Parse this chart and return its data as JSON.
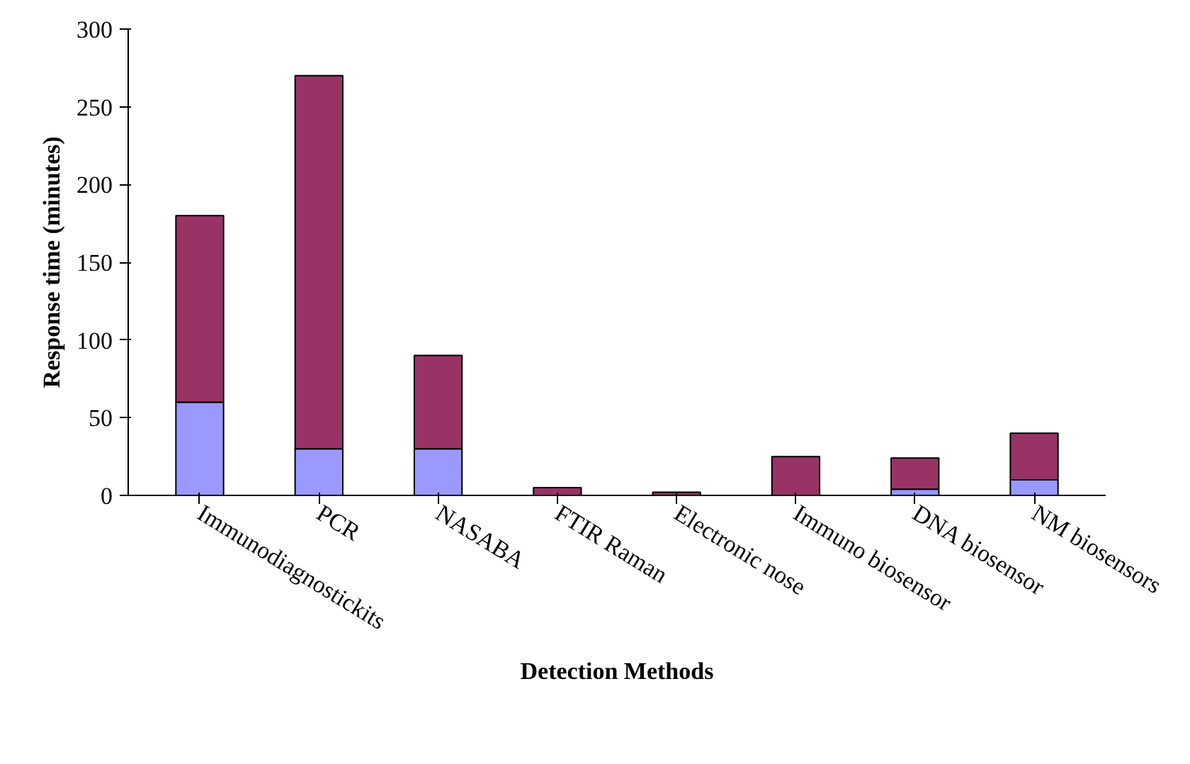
{
  "chart_data": {
    "type": "bar",
    "stacked": true,
    "xlabel": "Detection Methods",
    "ylabel": "Response time (minutes)",
    "categories": [
      "Immunodiagnostickits",
      "PCR",
      "NASABA",
      "FTIR Raman",
      "Electronic nose",
      "Immuno biosensor",
      "DNA biosensor",
      "NM biosensors"
    ],
    "series": [
      {
        "color": "#9999ff",
        "values": [
          60,
          30,
          30,
          0,
          0,
          null,
          4,
          10
        ]
      },
      {
        "color": "#993366",
        "values": [
          120,
          240,
          60,
          5,
          2,
          25,
          20,
          30
        ]
      }
    ],
    "ylim": [
      0,
      300
    ],
    "yticks": [
      0,
      50,
      100,
      150,
      200,
      250,
      300
    ]
  }
}
